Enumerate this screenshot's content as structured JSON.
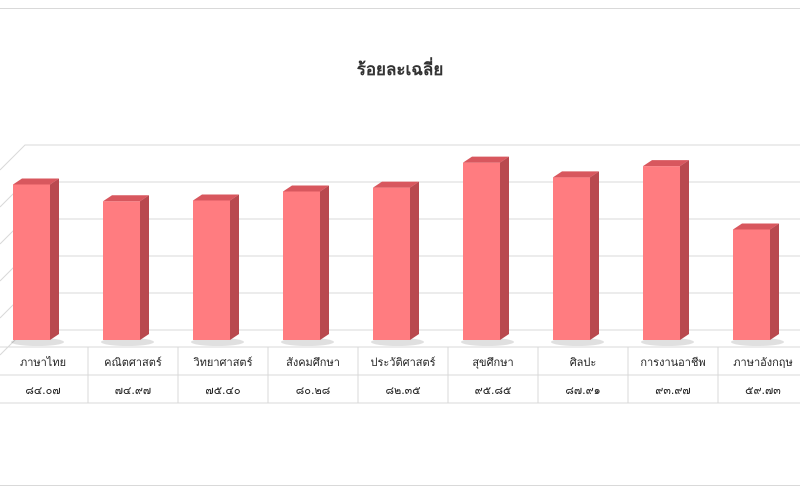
{
  "chart_data": {
    "type": "bar",
    "title": "ร้อยละเฉลี่ย",
    "categories": [
      "ภาษาไทย",
      "คณิตศาสตร์",
      "วิทยาศาสตร์",
      "สังคมศึกษา",
      "ประวัติศาสตร์",
      "สุขศึกษา",
      "ศิลปะ",
      "การงานอาชีพ",
      "ภาษาอังกฤษ"
    ],
    "value_labels": [
      "๘๔.๐๗",
      "๗๔.๙๗",
      "๗๕.๔๐",
      "๘๐.๒๘",
      "๘๒.๓๕",
      "๙๕.๘๕",
      "๘๗.๙๑",
      "๙๓.๙๗",
      "๕๙.๗๓"
    ],
    "values": [
      84.07,
      74.97,
      75.4,
      80.28,
      82.35,
      95.85,
      87.91,
      93.97,
      59.73
    ],
    "ylim": [
      0,
      100
    ],
    "grid": true,
    "bar_color": "#ff7c80",
    "bar_side_color": "#b9494f",
    "bar_top_color": "#d8575e"
  }
}
